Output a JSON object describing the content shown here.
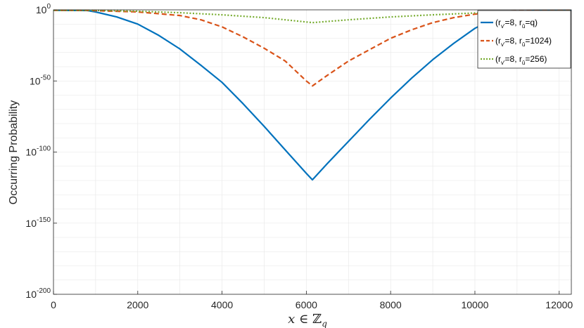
{
  "chart_data": {
    "type": "line",
    "title": "",
    "xlabel": "x ∈ ℤ_q",
    "ylabel": "Occurring Probability",
    "xlim": [
      0,
      12288
    ],
    "ylim_log10": [
      -200,
      0
    ],
    "yscale": "log",
    "grid": true,
    "legend_position": "top-right",
    "x_ticks": [
      "0",
      "2000",
      "4000",
      "6000",
      "8000",
      "10000",
      "12000"
    ],
    "y_ticks": [
      {
        "base": "10",
        "exp": "0"
      },
      {
        "base": "10",
        "exp": "-50"
      },
      {
        "base": "10",
        "exp": "-100"
      },
      {
        "base": "10",
        "exp": "-150"
      },
      {
        "base": "10",
        "exp": "-200"
      }
    ],
    "series": [
      {
        "name": "(r_v'=8, r_û=q)",
        "color": "#0072BD",
        "style": "solid",
        "x": [
          0,
          800,
          1000,
          1500,
          2000,
          2500,
          3000,
          3500,
          4000,
          4500,
          5000,
          5500,
          6000,
          6144,
          6500,
          7000,
          7500,
          8000,
          8500,
          9000,
          9500,
          10000,
          10500,
          11000,
          11400,
          12288
        ],
        "log10_y": [
          -0.3,
          -0.5,
          -1.5,
          -5,
          -10,
          -18,
          -27.5,
          -39,
          -51,
          -66,
          -82,
          -98.5,
          -115,
          -119.5,
          -108,
          -92.5,
          -77,
          -62,
          -48,
          -35,
          -23.5,
          -13,
          -5.5,
          -1.5,
          -0.5,
          -0.3
        ]
      },
      {
        "name": "(r_v'=8, r_û=1024)",
        "color": "#D95319",
        "style": "dashed",
        "x": [
          0,
          800,
          1000,
          2000,
          3000,
          3500,
          4000,
          4500,
          5000,
          5500,
          6000,
          6144,
          6500,
          7000,
          7500,
          8000,
          8500,
          9000,
          9500,
          10000,
          10500,
          11000,
          12288
        ],
        "log10_y": [
          -0.3,
          -0.4,
          -0.6,
          -1.5,
          -4,
          -7,
          -12,
          -19,
          -27,
          -36,
          -50,
          -53.5,
          -46,
          -36,
          -28,
          -20,
          -14,
          -9,
          -5.5,
          -3,
          -1.5,
          -0.7,
          -0.3
        ]
      },
      {
        "name": "(r_v'=8, r_û=256)",
        "color": "#77AC30",
        "style": "dotted",
        "x": [
          0,
          1000,
          2000,
          3000,
          4000,
          5000,
          6144,
          7000,
          8000,
          9000,
          10000,
          11000,
          12288
        ],
        "log10_y": [
          -0.3,
          -0.4,
          -1,
          -2,
          -3.5,
          -5.5,
          -9,
          -7,
          -5,
          -3.5,
          -2.2,
          -1.2,
          -0.5
        ]
      }
    ]
  }
}
